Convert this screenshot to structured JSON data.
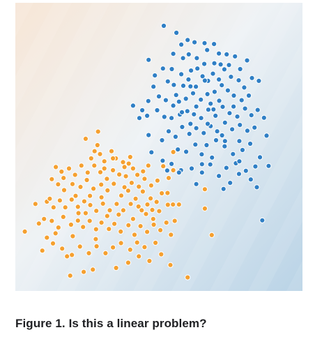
{
  "caption": "Figure 1. Is this a linear problem?",
  "colors": {
    "class_orange": "#f5a030",
    "class_blue": "#2f7fc5",
    "background_orange_side": "#f7e6d6",
    "background_mid": "#eef2f5",
    "background_blue_side": "#b9d3e6"
  },
  "chart_data": {
    "type": "scatter",
    "title": "",
    "xlabel": "",
    "ylabel": "",
    "xlim": [
      0,
      100
    ],
    "ylim": [
      0,
      100
    ],
    "grid": false,
    "legend": "none",
    "background": "decision-boundary shading: orange tint top-left, blue tint bottom-right",
    "series": [
      {
        "color": "#2f7fc5",
        "points": [
          [
            51.7,
            92.0
          ],
          [
            56.1,
            89.6
          ],
          [
            60.0,
            87.1
          ],
          [
            57.8,
            85.5
          ],
          [
            62.4,
            86.3
          ],
          [
            65.9,
            86.0
          ],
          [
            69.2,
            85.7
          ],
          [
            66.8,
            83.6
          ],
          [
            60.4,
            82.1
          ],
          [
            55.0,
            82.3
          ],
          [
            63.2,
            80.8
          ],
          [
            58.4,
            80.8
          ],
          [
            70.9,
            82.4
          ],
          [
            73.6,
            82.1
          ],
          [
            76.5,
            81.4
          ],
          [
            80.7,
            80.0
          ],
          [
            78.3,
            77.0
          ],
          [
            74.4,
            78.4
          ],
          [
            71.5,
            78.6
          ],
          [
            69.3,
            79.0
          ],
          [
            65.8,
            78.8
          ],
          [
            63.4,
            77.2
          ],
          [
            61.2,
            76.5
          ],
          [
            57.8,
            75.2
          ],
          [
            54.5,
            77.0
          ],
          [
            51.4,
            77.2
          ],
          [
            46.4,
            80.2
          ],
          [
            48.6,
            74.8
          ],
          [
            53.1,
            72.7
          ],
          [
            55.2,
            71.5
          ],
          [
            58.5,
            71.2
          ],
          [
            60.3,
            73.4
          ],
          [
            62.9,
            70.9
          ],
          [
            65.2,
            74.5
          ],
          [
            67.1,
            72.9
          ],
          [
            68.8,
            75.4
          ],
          [
            70.9,
            73.4
          ],
          [
            72.8,
            76.9
          ],
          [
            75.1,
            74.3
          ],
          [
            77.8,
            73.1
          ],
          [
            79.7,
            70.6
          ],
          [
            82.4,
            73.9
          ],
          [
            84.8,
            72.9
          ],
          [
            81.3,
            67.8
          ],
          [
            78.8,
            66.2
          ],
          [
            76.1,
            67.8
          ],
          [
            74.0,
            69.6
          ],
          [
            71.9,
            71.4
          ],
          [
            69.4,
            69.1
          ],
          [
            66.9,
            68.3
          ],
          [
            64.6,
            66.4
          ],
          [
            61.9,
            68.6
          ],
          [
            59.4,
            66.7
          ],
          [
            57.0,
            65.7
          ],
          [
            55.0,
            64.3
          ],
          [
            52.4,
            66.2
          ],
          [
            50.0,
            67.5
          ],
          [
            48.1,
            70.9
          ],
          [
            46.3,
            65.9
          ],
          [
            44.2,
            62.7
          ],
          [
            41.0,
            64.3
          ],
          [
            43.2,
            60.0
          ],
          [
            45.9,
            60.8
          ],
          [
            49.4,
            62.7
          ],
          [
            51.9,
            60.4
          ],
          [
            54.4,
            60.0
          ],
          [
            57.3,
            61.2
          ],
          [
            59.9,
            62.4
          ],
          [
            62.2,
            61.3
          ],
          [
            64.7,
            60.0
          ],
          [
            67.2,
            62.9
          ],
          [
            69.7,
            60.8
          ],
          [
            72.2,
            63.9
          ],
          [
            74.6,
            61.7
          ],
          [
            77.3,
            60.5
          ],
          [
            80.0,
            63.3
          ],
          [
            82.2,
            61.0
          ],
          [
            84.4,
            62.8
          ],
          [
            86.6,
            60.1
          ],
          [
            83.3,
            56.7
          ],
          [
            80.8,
            55.6
          ],
          [
            78.2,
            57.6
          ],
          [
            75.5,
            56.1
          ],
          [
            73.0,
            58.4
          ],
          [
            70.3,
            55.4
          ],
          [
            68.0,
            57.2
          ],
          [
            65.6,
            54.8
          ],
          [
            63.0,
            56.5
          ],
          [
            60.6,
            54.5
          ],
          [
            58.1,
            56.9
          ],
          [
            55.8,
            53.5
          ],
          [
            53.4,
            55.4
          ],
          [
            51.1,
            52.3
          ],
          [
            46.4,
            54.1
          ],
          [
            56.6,
            49.1
          ],
          [
            59.5,
            48.3
          ],
          [
            62.7,
            50.8
          ],
          [
            66.6,
            50.6
          ],
          [
            69.9,
            52.3
          ],
          [
            72.9,
            50.2
          ],
          [
            75.8,
            47.5
          ],
          [
            79.1,
            48.9
          ],
          [
            81.8,
            51.1
          ],
          [
            85.2,
            46.4
          ],
          [
            83.6,
            43.2
          ],
          [
            80.3,
            41.7
          ],
          [
            76.8,
            44.3
          ],
          [
            73.5,
            42.7
          ],
          [
            68.5,
            46.3
          ],
          [
            64.9,
            47.4
          ],
          [
            61.4,
            42.5
          ],
          [
            57.7,
            41.9
          ],
          [
            54.4,
            44.1
          ],
          [
            51.3,
            45.2
          ],
          [
            47.4,
            48.1
          ],
          [
            67.9,
            43.9
          ],
          [
            70.9,
            39.9
          ],
          [
            74.8,
            37.5
          ],
          [
            77.9,
            40.6
          ],
          [
            82.0,
            38.7
          ],
          [
            65.0,
            41.1
          ],
          [
            63.0,
            37.1
          ],
          [
            72.5,
            35.4
          ],
          [
            84.1,
            36.0
          ],
          [
            57.0,
            41.1
          ],
          [
            52.9,
            41.8
          ],
          [
            87.5,
            53.9
          ],
          [
            88.2,
            43.4
          ],
          [
            58.0,
            62.0
          ],
          [
            68.0,
            65.0
          ],
          [
            73.0,
            52.0
          ],
          [
            61.0,
            58.0
          ],
          [
            66.0,
            73.0
          ],
          [
            76.0,
            64.0
          ],
          [
            56.0,
            68.0
          ],
          [
            71.0,
            66.0
          ],
          [
            78.0,
            52.0
          ],
          [
            63.0,
            64.0
          ],
          [
            67.0,
            58.0
          ],
          [
            65.0,
            44.0
          ],
          [
            78.0,
            45.0
          ],
          [
            69.0,
            63.0
          ],
          [
            86.0,
            24.5
          ],
          [
            61.0,
            71.0
          ],
          [
            72.0,
            54.0
          ]
        ]
      },
      {
        "color": "#f5a030",
        "points": [
          [
            28.8,
            55.3
          ],
          [
            24.5,
            52.8
          ],
          [
            28.6,
            50.6
          ],
          [
            27.6,
            48.5
          ],
          [
            26.4,
            46.0
          ],
          [
            29.5,
            47.5
          ],
          [
            31.0,
            45.0
          ],
          [
            33.5,
            48.5
          ],
          [
            35.0,
            46.0
          ],
          [
            37.5,
            44.7
          ],
          [
            39.5,
            44.2
          ],
          [
            41.0,
            42.5
          ],
          [
            42.5,
            40.3
          ],
          [
            44.5,
            41.5
          ],
          [
            46.3,
            43.5
          ],
          [
            55.0,
            48.2
          ],
          [
            51.5,
            43.3
          ],
          [
            53.4,
            39.2
          ],
          [
            55.0,
            41.9
          ],
          [
            49.5,
            38.3
          ],
          [
            47.3,
            36.6
          ],
          [
            45.0,
            38.9
          ],
          [
            43.0,
            36.2
          ],
          [
            40.5,
            37.5
          ],
          [
            38.5,
            39.8
          ],
          [
            36.2,
            40.4
          ],
          [
            34.0,
            41.9
          ],
          [
            31.9,
            38.9
          ],
          [
            29.6,
            41.2
          ],
          [
            27.5,
            43.5
          ],
          [
            25.2,
            41.1
          ],
          [
            23.0,
            43.5
          ],
          [
            20.8,
            40.3
          ],
          [
            18.7,
            42.5
          ],
          [
            16.1,
            41.4
          ],
          [
            14.1,
            43.0
          ],
          [
            12.7,
            38.8
          ],
          [
            14.9,
            37.0
          ],
          [
            16.8,
            39.2
          ],
          [
            19.9,
            37.1
          ],
          [
            22.7,
            36.1
          ],
          [
            24.9,
            38.5
          ],
          [
            27.2,
            35.5
          ],
          [
            29.9,
            36.9
          ],
          [
            32.1,
            34.9
          ],
          [
            34.3,
            37.2
          ],
          [
            36.9,
            33.1
          ],
          [
            39.3,
            34.8
          ],
          [
            41.9,
            32.0
          ],
          [
            44.4,
            34.5
          ],
          [
            47.1,
            32.1
          ],
          [
            49.2,
            30.9
          ],
          [
            51.0,
            33.9
          ],
          [
            53.1,
            29.9
          ],
          [
            50.1,
            27.7
          ],
          [
            47.7,
            28.1
          ],
          [
            45.5,
            26.7
          ],
          [
            42.9,
            29.3
          ],
          [
            40.2,
            30.2
          ],
          [
            37.6,
            28.0
          ],
          [
            35.3,
            30.2
          ],
          [
            32.9,
            28.0
          ],
          [
            30.5,
            30.3
          ],
          [
            28.2,
            27.8
          ],
          [
            26.1,
            29.8
          ],
          [
            24.0,
            31.1
          ],
          [
            21.8,
            29.2
          ],
          [
            19.6,
            31.7
          ],
          [
            17.4,
            29.0
          ],
          [
            15.5,
            31.4
          ],
          [
            13.3,
            29.0
          ],
          [
            11.0,
            31.0
          ],
          [
            7.0,
            30.2
          ],
          [
            3.3,
            20.6
          ],
          [
            8.2,
            23.4
          ],
          [
            12.7,
            24.3
          ],
          [
            15.0,
            22.0
          ],
          [
            16.7,
            25.7
          ],
          [
            19.4,
            23.0
          ],
          [
            21.8,
            24.4
          ],
          [
            23.6,
            22.2
          ],
          [
            25.9,
            24.3
          ],
          [
            28.1,
            21.4
          ],
          [
            30.0,
            23.7
          ],
          [
            32.6,
            21.5
          ],
          [
            34.5,
            23.3
          ],
          [
            36.7,
            20.6
          ],
          [
            39.4,
            22.8
          ],
          [
            41.5,
            19.5
          ],
          [
            43.6,
            22.5
          ],
          [
            45.9,
            20.5
          ],
          [
            48.2,
            23.0
          ],
          [
            50.5,
            21.1
          ],
          [
            52.6,
            23.7
          ],
          [
            54.2,
            19.5
          ],
          [
            55.5,
            24.3
          ],
          [
            54.9,
            30.0
          ],
          [
            48.8,
            16.7
          ],
          [
            45.0,
            15.2
          ],
          [
            42.4,
            16.8
          ],
          [
            40.0,
            14.3
          ],
          [
            36.8,
            16.6
          ],
          [
            34.0,
            15.1
          ],
          [
            31.4,
            13.1
          ],
          [
            28.3,
            15.5
          ],
          [
            25.6,
            13.1
          ],
          [
            22.5,
            15.4
          ],
          [
            19.7,
            12.5
          ],
          [
            16.3,
            14.7
          ],
          [
            13.1,
            16.5
          ],
          [
            11.0,
            18.5
          ],
          [
            10.0,
            25.0
          ],
          [
            9.4,
            14.0
          ],
          [
            50.8,
            12.7
          ],
          [
            46.7,
            10.4
          ],
          [
            39.3,
            9.8
          ],
          [
            35.1,
            8.0
          ],
          [
            27.0,
            7.4
          ],
          [
            23.8,
            6.6
          ],
          [
            19.1,
            5.3
          ],
          [
            66.0,
            35.3
          ],
          [
            66.0,
            28.6
          ],
          [
            68.4,
            19.4
          ],
          [
            54.0,
            9.0
          ],
          [
            60.0,
            4.7
          ],
          [
            18.0,
            12.0
          ],
          [
            34.0,
            46.0
          ],
          [
            30.0,
            32.5
          ],
          [
            21.0,
            33.0
          ],
          [
            38.0,
            36.0
          ],
          [
            44.0,
            28.0
          ],
          [
            26.0,
            33.0
          ],
          [
            48.0,
            25.0
          ],
          [
            32.0,
            26.0
          ],
          [
            17.0,
            35.0
          ],
          [
            53.0,
            34.0
          ],
          [
            41.0,
            25.0
          ],
          [
            36.0,
            26.5
          ],
          [
            24.5,
            27.0
          ],
          [
            20.0,
            19.0
          ],
          [
            28.0,
            18.0
          ],
          [
            43.0,
            12.0
          ],
          [
            14.0,
            20.0
          ],
          [
            38.0,
            43.0
          ],
          [
            57.0,
            30.0
          ],
          [
            12.0,
            32.0
          ],
          [
            31.0,
            42.5
          ],
          [
            40.0,
            46.5
          ],
          [
            46.0,
            30.0
          ],
          [
            22.0,
            27.0
          ]
        ]
      }
    ]
  }
}
